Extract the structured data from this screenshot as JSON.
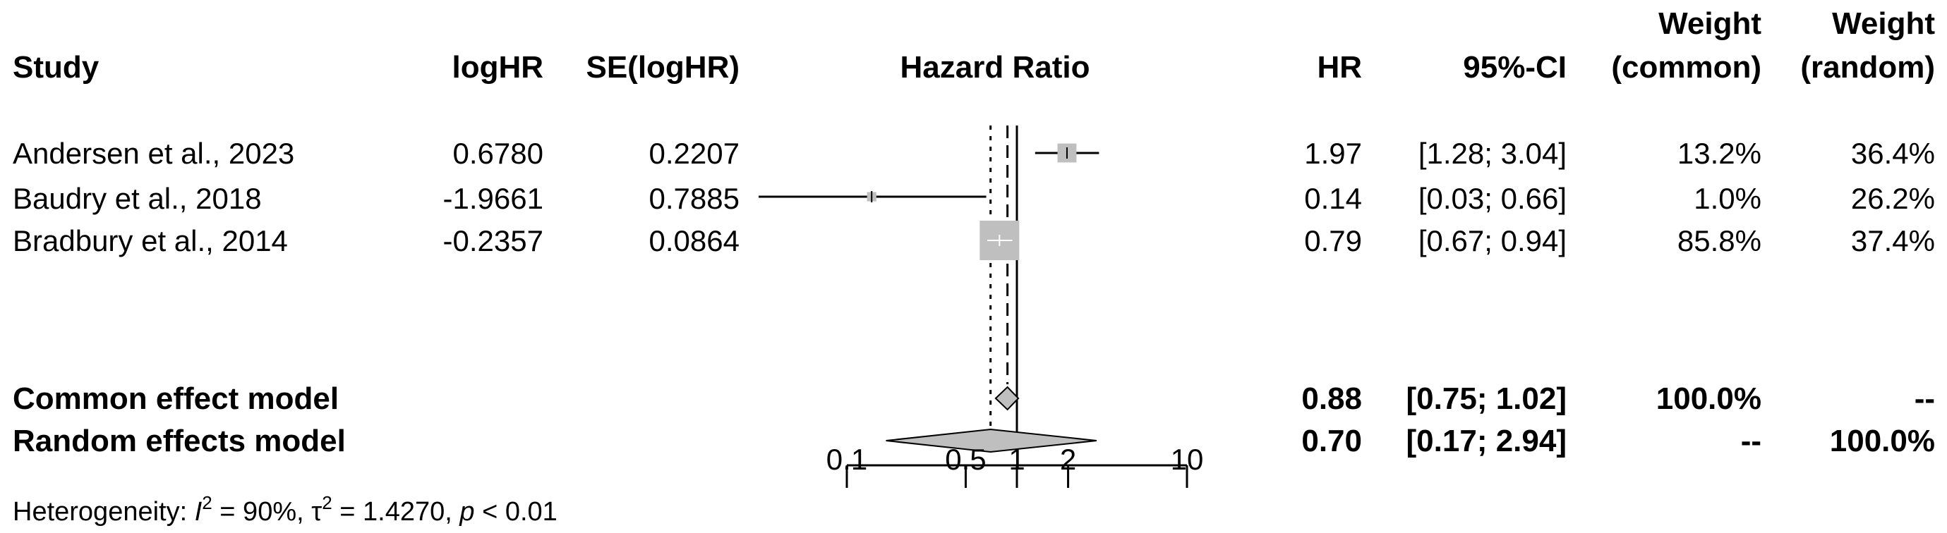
{
  "headers": {
    "study": "Study",
    "loghr": "logHR",
    "se": "SE(logHR)",
    "plot": "Hazard Ratio",
    "hr": "HR",
    "ci": "95%-CI",
    "w_common_1": "Weight",
    "w_common_2": "(common)",
    "w_random_1": "Weight",
    "w_random_2": "(random)"
  },
  "studies": [
    {
      "name": "Andersen et al., 2023",
      "loghr": "0.6780",
      "se": "0.2207",
      "hr_text": "1.97",
      "ci_text": "[1.28; 3.04]",
      "w_common": "13.2%",
      "w_random": "36.4%"
    },
    {
      "name": "Baudry et al., 2018",
      "loghr": "-1.9661",
      "se": "0.7885",
      "hr_text": "0.14",
      "ci_text": "[0.03; 0.66]",
      "w_common": "1.0%",
      "w_random": "26.2%"
    },
    {
      "name": "Bradbury et al., 2014",
      "loghr": "-0.2357",
      "se": "0.0864",
      "hr_text": "0.79",
      "ci_text": "[0.67; 0.94]",
      "w_common": "85.8%",
      "w_random": "37.4%"
    }
  ],
  "models": [
    {
      "name": "Common effect model",
      "hr_text": "0.88",
      "ci_text": "[0.75; 1.02]",
      "w_common": "100.0%",
      "w_random": "--"
    },
    {
      "name": "Random effects model",
      "hr_text": "0.70",
      "ci_text": "[0.17; 2.94]",
      "w_random": "100.0%",
      "w_common": "--"
    }
  ],
  "heterogeneity": {
    "label": "Heterogeneity: ",
    "i_symbol": "I",
    "sup": "2",
    "i2_value": " = 90%, ",
    "tau_symbol": "τ",
    "tau2_value": " = 1.4270, ",
    "p_symbol": "p",
    "p_value": " < 0.01"
  },
  "colors": {
    "box": "#bfbfbf",
    "diamond": "#bfbfbf",
    "line": "#000000"
  },
  "chart_data": {
    "type": "forest",
    "scale": "log",
    "xlim": [
      0.1,
      10
    ],
    "ticks": [
      0.1,
      0.5,
      1,
      2,
      10
    ],
    "tick_labels": [
      "0.1",
      "0.5",
      "1",
      "2",
      "10"
    ],
    "null_value": 1,
    "studies": [
      {
        "hr": 1.97,
        "lo": 1.28,
        "hi": 3.04,
        "weight_common": 13.2
      },
      {
        "hr": 0.14,
        "lo": 0.03,
        "hi": 0.66,
        "weight_common": 1.0,
        "arrow_left": true
      },
      {
        "hr": 0.79,
        "lo": 0.67,
        "hi": 0.94,
        "weight_common": 85.8
      }
    ],
    "common": {
      "hr": 0.88,
      "lo": 0.75,
      "hi": 1.02
    },
    "random": {
      "hr": 0.7,
      "lo": 0.17,
      "hi": 2.94
    }
  }
}
